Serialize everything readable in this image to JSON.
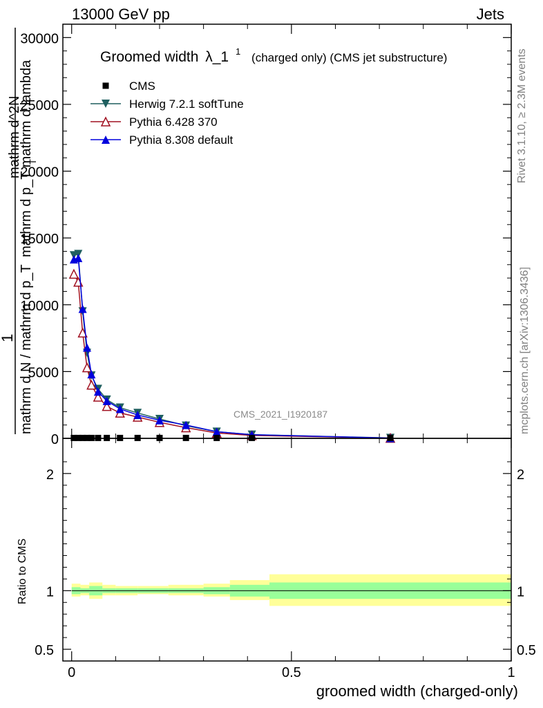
{
  "header": {
    "left": "13000 GeV pp",
    "right": "Jets"
  },
  "side_labels": {
    "rivet": "Rivet 3.1.10, ≥ 2.3M events",
    "mcplots": "mcplots.cern.ch [arXiv:1306.3436]"
  },
  "chart_data": [
    {
      "type": "line",
      "title_main": "Groomed width",
      "title_lambda": "λ_1",
      "title_sup": "1",
      "title_suffix": "(charged only) (CMS jet substructure)",
      "watermark": "CMS_2021_I1920187",
      "ylabel_numerator": "1",
      "ylabel_line1": "mathrm d N / mathrm d p_T",
      "ylabel_line2": "mathrm d p_T mathrm d lambda",
      "ylabel_sub": "T",
      "ylabel_top": "mathrm d^2N",
      "ylim": [
        0,
        31000
      ],
      "yticks": [
        0,
        5000,
        10000,
        15000,
        20000,
        25000,
        30000
      ],
      "ytick_labels": [
        "0",
        "5000",
        "10000",
        "15000",
        "20000",
        "25000",
        "30000"
      ],
      "xlim": [
        -0.02,
        1.0
      ],
      "x": [
        0.005,
        0.015,
        0.025,
        0.035,
        0.045,
        0.06,
        0.08,
        0.11,
        0.15,
        0.2,
        0.26,
        0.33,
        0.41,
        0.725
      ],
      "series": [
        {
          "name": "CMS",
          "color": "#000000",
          "marker": "square",
          "values": [
            30,
            30,
            30,
            30,
            30,
            30,
            30,
            30,
            30,
            30,
            30,
            30,
            30,
            30
          ]
        },
        {
          "name": "Herwig 7.2.1 softTune",
          "color": "#1f5f5f",
          "marker": "triangle-down",
          "values": [
            13700,
            13800,
            9500,
            6400,
            4700,
            3700,
            2900,
            2300,
            1900,
            1450,
            950,
            500,
            280,
            30
          ]
        },
        {
          "name": "Pythia 6.428 370",
          "color": "#a01020",
          "marker": "triangle-up-open",
          "values": [
            12300,
            11700,
            7900,
            5300,
            4000,
            3100,
            2400,
            1900,
            1600,
            1200,
            800,
            400,
            220,
            20
          ]
        },
        {
          "name": "Pythia 8.308 default",
          "color": "#0000dd",
          "marker": "triangle-up",
          "values": [
            13400,
            13500,
            9700,
            6800,
            4800,
            3500,
            2800,
            2200,
            1750,
            1350,
            1000,
            500,
            270,
            20
          ]
        }
      ]
    },
    {
      "type": "area",
      "ylabel": "Ratio to CMS",
      "xlabel": "groomed width (charged-only)",
      "ylim": [
        0.4,
        2.3
      ],
      "yticks": [
        0.5,
        1,
        2
      ],
      "ytick_labels": [
        "0.5",
        "1",
        "2"
      ],
      "xlim": [
        -0.02,
        1.0
      ],
      "xticks": [
        0,
        0.5,
        1
      ],
      "xtick_labels": [
        "0",
        "0.5",
        "1"
      ],
      "bins": [
        0,
        0.02,
        0.04,
        0.07,
        0.1,
        0.15,
        0.22,
        0.3,
        0.36,
        0.45,
        1.0
      ],
      "band_stat_lo": [
        0.97,
        0.98,
        0.96,
        0.98,
        0.98,
        0.98,
        0.98,
        0.97,
        0.95,
        0.93
      ],
      "band_stat_hi": [
        1.03,
        1.02,
        1.04,
        1.02,
        1.02,
        1.02,
        1.02,
        1.03,
        1.05,
        1.07
      ],
      "band_tot_lo": [
        0.95,
        0.96,
        0.93,
        0.96,
        0.96,
        0.97,
        0.96,
        0.95,
        0.92,
        0.87
      ],
      "band_tot_hi": [
        1.06,
        1.05,
        1.07,
        1.05,
        1.04,
        1.04,
        1.05,
        1.06,
        1.09,
        1.14
      ],
      "colors": {
        "stat": "#99ff99",
        "tot": "#ffff99",
        "ref": "#000000"
      }
    }
  ]
}
